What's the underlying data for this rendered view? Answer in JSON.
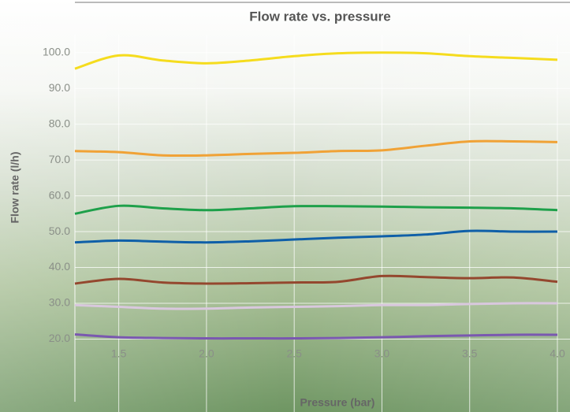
{
  "chart_data": {
    "type": "line",
    "title": "Flow rate vs. pressure",
    "x_label": "Pressure (bar)",
    "y_label": "Flow rate (l/h)",
    "x": [
      1.25,
      1.5,
      1.75,
      2.0,
      2.25,
      2.5,
      2.75,
      3.0,
      3.25,
      3.5,
      3.75,
      4.0
    ],
    "xlim": [
      1.25,
      4.0
    ],
    "xticks": [
      1.5,
      {
        "value": 2.0,
        "label": "2.0"
      },
      2.5,
      {
        "value": 3.0,
        "label": "3.0"
      },
      3.5,
      {
        "value": 4.0,
        "label": "4.0"
      }
    ],
    "ylim": [
      2.5,
      105
    ],
    "yticks": [
      {
        "value": 20,
        "label": "20.0"
      },
      {
        "value": 30,
        "label": "30.0"
      },
      {
        "value": 40,
        "label": "40.0"
      },
      {
        "value": 50,
        "label": "50.0"
      },
      {
        "value": 60,
        "label": "60.0"
      },
      {
        "value": 70,
        "label": "70.0"
      },
      {
        "value": 80,
        "label": "80.0"
      },
      {
        "value": 90,
        "label": "90.0"
      },
      {
        "value": 100,
        "label": "100.0"
      }
    ],
    "grid": true,
    "series": [
      {
        "color": "#f5dc1e",
        "values": [
          95.5,
          99.2,
          97.8,
          97,
          97.8,
          99,
          99.8,
          100,
          99.8,
          99,
          98.5,
          98
        ]
      },
      {
        "color": "#f0a236",
        "values": [
          72.5,
          72.2,
          71.3,
          71.3,
          71.7,
          72,
          72.5,
          72.7,
          74,
          75.2,
          75.2,
          75
        ]
      },
      {
        "color": "#1ea04a",
        "values": [
          55,
          57.2,
          56.5,
          56,
          56.5,
          57.1,
          57.1,
          57,
          56.8,
          56.7,
          56.5,
          56
        ]
      },
      {
        "color": "#0f5fa8",
        "values": [
          47,
          47.5,
          47.2,
          47,
          47.3,
          47.8,
          48.3,
          48.7,
          49.2,
          50.2,
          50,
          50
        ]
      },
      {
        "color": "#94472e",
        "values": [
          35.5,
          36.8,
          35.8,
          35.5,
          35.6,
          35.8,
          36,
          37.6,
          37.3,
          37,
          37.2,
          36
        ]
      },
      {
        "color": "#d9c8de",
        "values": [
          29.5,
          29,
          28.5,
          28.5,
          28.8,
          29,
          29.2,
          29.5,
          29.5,
          29.8,
          30,
          30
        ]
      },
      {
        "color": "#7a58b0",
        "values": [
          21.3,
          20.5,
          20.3,
          20.2,
          20.2,
          20.2,
          20.3,
          20.5,
          20.8,
          21,
          21.2,
          21.2
        ]
      }
    ]
  }
}
